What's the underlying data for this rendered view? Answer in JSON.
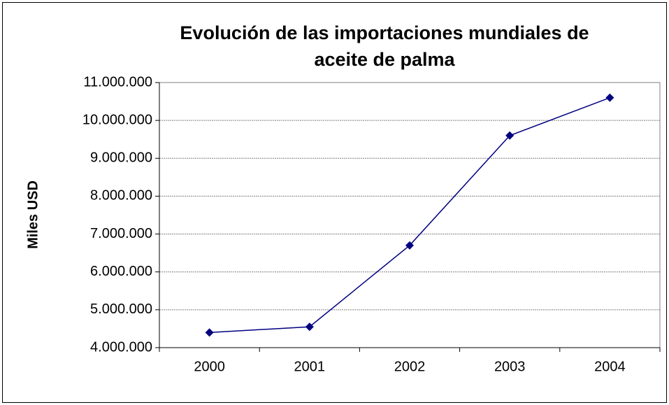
{
  "chart_data": {
    "type": "line",
    "title": "Evolución de las importaciones mundiales de aceite de palma",
    "y_label": "Miles USD",
    "categories": [
      "2000",
      "2001",
      "2002",
      "2003",
      "2004"
    ],
    "values": [
      4400000,
      4550000,
      6700000,
      9600000,
      10600000
    ],
    "color": "#000080",
    "ylim": [
      4000000,
      11000000
    ],
    "yticks": [
      {
        "value": 4000000,
        "label": "4.000.000"
      },
      {
        "value": 5000000,
        "label": "5.000.000"
      },
      {
        "value": 6000000,
        "label": "6.000.000"
      },
      {
        "value": 7000000,
        "label": "7.000.000"
      },
      {
        "value": 8000000,
        "label": "8.000.000"
      },
      {
        "value": 9000000,
        "label": "9.000.000"
      },
      {
        "value": 10000000,
        "label": "10.000.000"
      },
      {
        "value": 11000000,
        "label": "11.000.000"
      }
    ],
    "grid": true
  }
}
